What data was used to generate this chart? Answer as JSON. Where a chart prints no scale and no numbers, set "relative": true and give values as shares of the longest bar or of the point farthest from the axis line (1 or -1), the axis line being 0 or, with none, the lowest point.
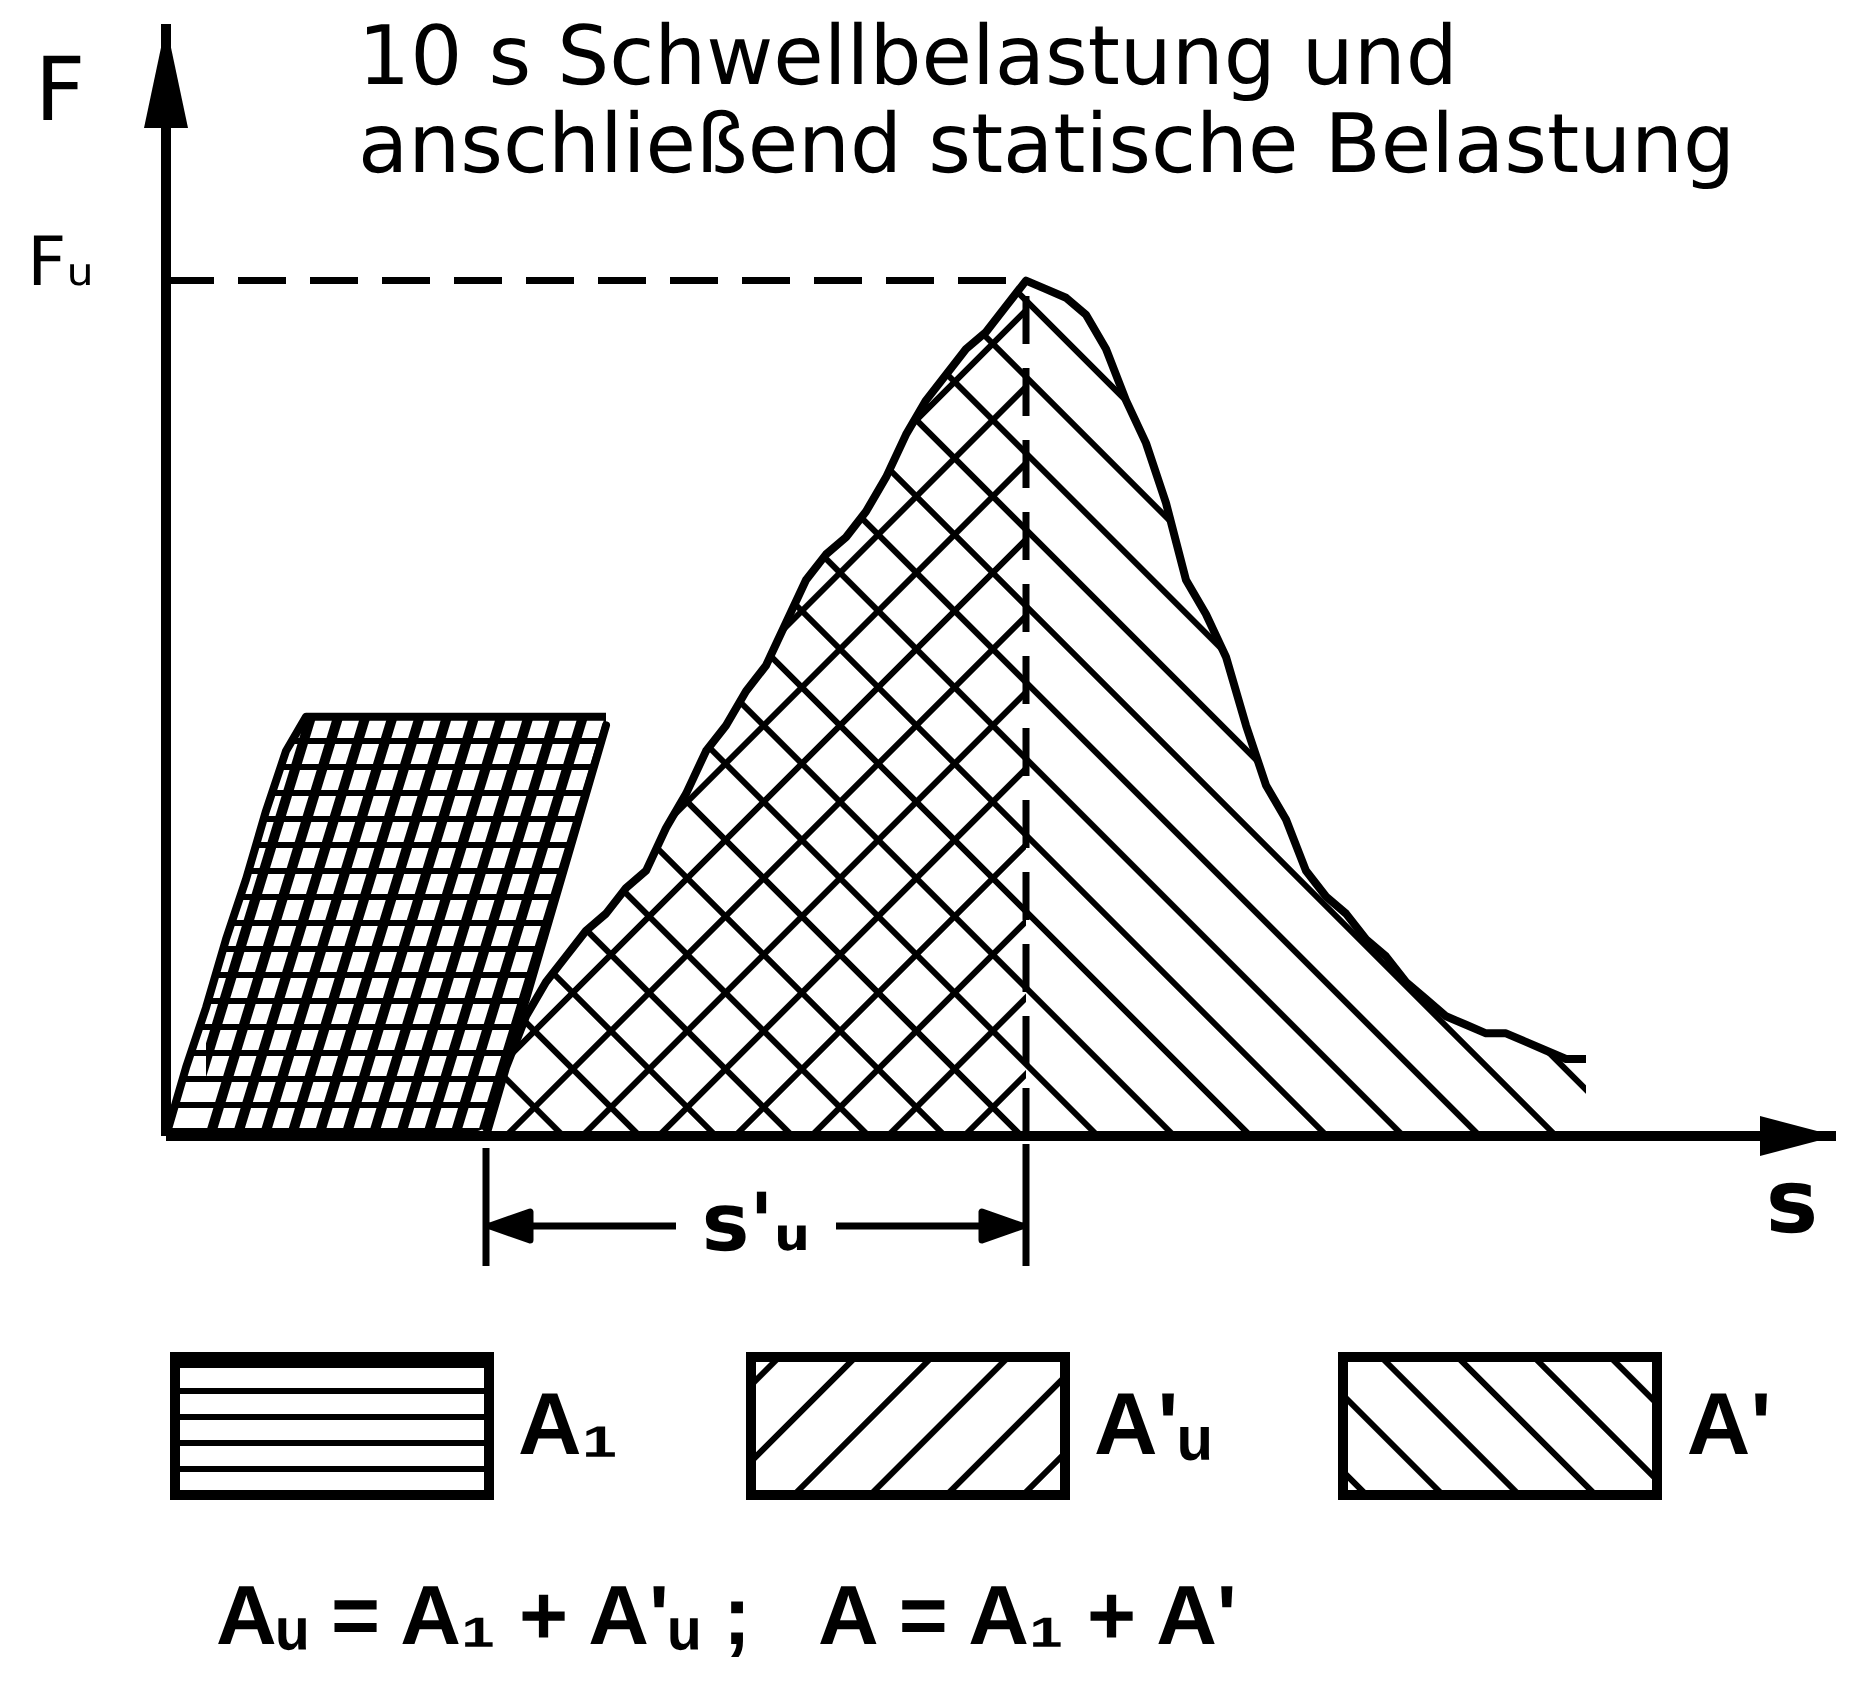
{
  "chart_data": {
    "type": "area",
    "relative": true,
    "title": "10 s Schwellbelastung und anschließend statische Belastung",
    "xlabel": "s",
    "ylabel": "F",
    "categories": [
      null,
      null,
      null,
      null,
      null,
      null,
      null,
      null,
      null,
      null,
      null,
      null,
      null,
      null,
      null,
      null,
      null,
      null,
      null,
      null,
      null,
      null,
      null,
      null,
      null,
      null,
      null,
      null,
      null,
      null,
      null,
      null,
      null,
      null,
      null,
      null,
      null,
      null,
      null,
      null,
      null,
      null,
      null,
      null,
      null,
      null,
      null,
      null,
      null,
      null,
      null,
      null,
      null,
      null,
      null,
      null,
      null,
      null,
      null,
      null,
      null,
      null,
      null,
      null,
      null,
      null,
      null,
      null,
      null,
      null,
      null,
      null
    ],
    "series": [
      {
        "name": "A₁",
        "color": "#000000",
        "values": [
          0,
          0.08,
          0.15,
          0.23,
          0.3,
          0.38,
          0.45,
          0.49,
          0.49,
          0.49,
          0.49,
          0.49,
          0.49,
          0.49,
          0.49,
          0.49,
          0.49,
          0.49,
          0.49,
          0.49,
          0.49,
          0.49,
          0.49,
          null,
          null,
          null,
          null,
          null,
          null,
          null,
          null,
          null,
          null,
          null,
          null,
          null,
          null,
          null,
          null,
          null,
          null,
          null,
          null,
          null,
          null,
          null,
          null,
          null,
          null,
          null,
          null,
          null,
          null,
          null,
          null,
          null,
          null,
          null,
          null,
          null,
          null,
          null,
          null,
          null,
          null,
          null,
          null,
          null,
          null,
          null,
          null,
          null
        ]
      },
      {
        "color": "#000000",
        "values": [
          null,
          null,
          0.15,
          0.23,
          0.3,
          0.38,
          0.45,
          0.49,
          0.49,
          0.49,
          0.49,
          0.49,
          0.49,
          0.49,
          0.49,
          0.49,
          0.49,
          0.49,
          0.49,
          0.49,
          0.49,
          0.49,
          0.49,
          null,
          null,
          null,
          null,
          null,
          null,
          null,
          null,
          null,
          null,
          null,
          null,
          null,
          null,
          null,
          null,
          null,
          null,
          null,
          null,
          null,
          null,
          null,
          null,
          null,
          null,
          null,
          null,
          null,
          null,
          null,
          null,
          null,
          null,
          null,
          null,
          null,
          null,
          null,
          null,
          null,
          null,
          null,
          null,
          null,
          null,
          null,
          null,
          null
        ]
      },
      {
        "name": "A'ᵤ",
        "color": "#000000",
        "values": [
          null,
          null,
          null,
          null,
          null,
          null,
          null,
          null,
          null,
          null,
          null,
          null,
          null,
          null,
          null,
          null,
          0,
          0.08,
          0.14,
          0.18,
          0.21,
          0.24,
          0.26,
          0.29,
          0.31,
          0.36,
          0.4,
          0.45,
          0.48,
          0.52,
          0.55,
          0.6,
          0.65,
          0.68,
          0.7,
          0.73,
          0.77,
          0.82,
          0.86,
          0.89,
          0.92,
          0.94,
          0.97,
          1,
          null,
          null,
          null,
          null,
          null,
          null,
          null,
          null,
          null,
          null,
          null,
          null,
          null,
          null,
          null,
          null,
          null,
          null,
          null,
          null,
          null,
          null,
          null,
          null,
          null,
          null,
          null,
          null
        ]
      },
      {
        "name": "A'",
        "color": "#000000",
        "values": [
          null,
          null,
          null,
          null,
          null,
          null,
          null,
          null,
          null,
          null,
          null,
          null,
          null,
          null,
          null,
          null,
          0,
          0.08,
          0.14,
          0.18,
          0.21,
          0.24,
          0.26,
          0.29,
          0.31,
          0.36,
          0.4,
          0.45,
          0.48,
          0.52,
          0.55,
          0.6,
          0.65,
          0.68,
          0.7,
          0.73,
          0.77,
          0.82,
          0.86,
          0.89,
          0.92,
          0.94,
          0.97,
          1,
          0.99,
          0.98,
          0.96,
          0.92,
          0.86,
          0.81,
          0.74,
          0.65,
          0.61,
          0.56,
          0.48,
          0.41,
          0.37,
          0.31,
          0.28,
          0.26,
          0.23,
          0.21,
          0.18,
          0.16,
          0.14,
          0.13,
          0.12,
          0.12,
          0.11,
          0.1,
          0.09,
          0.09
        ]
      },
      {
        "type": "line",
        "color": "#000000",
        "values": [
          null,
          null,
          null,
          null,
          null,
          null,
          null,
          null,
          null,
          null,
          null,
          null,
          null,
          null,
          null,
          null,
          0.01,
          0.09,
          0.16,
          0.24,
          0.32,
          0.4,
          0.48,
          null,
          null,
          null,
          null,
          null,
          null,
          null,
          null,
          null,
          null,
          null,
          null,
          null,
          null,
          null,
          null,
          null,
          null,
          null,
          null,
          null,
          null,
          null,
          null,
          null,
          null,
          null,
          null,
          null,
          null,
          null,
          null,
          null,
          null,
          null,
          null,
          null,
          null,
          null,
          null,
          null,
          null,
          null,
          null,
          null,
          null,
          null,
          null,
          null
        ]
      }
    ],
    "ref_lines": [
      {
        "axis": "y",
        "value": 1,
        "label": "Fᵤ",
        "line_style": "dashed"
      }
    ],
    "annotations": [
      "s'ᵤ",
      "Aᵤ = A₁ + A'ᵤ ;   A = A₁ + A'"
    ],
    "legend": "bottom"
  }
}
